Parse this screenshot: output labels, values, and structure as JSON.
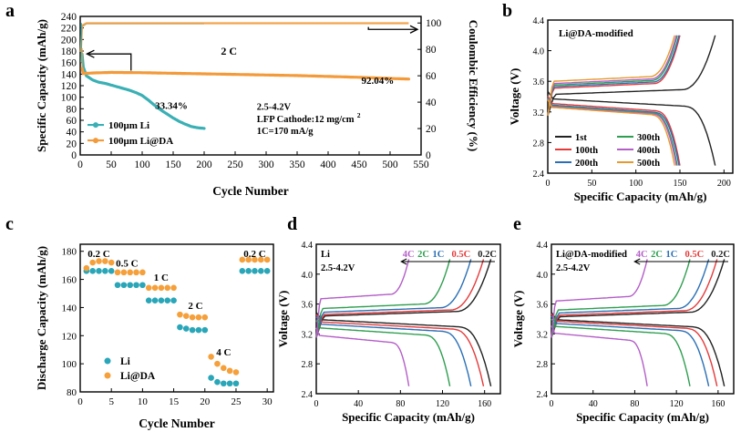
{
  "panels": {
    "a": "a",
    "b": "b",
    "c": "c",
    "d": "d",
    "e": "e"
  },
  "chart_data": [
    {
      "id": "a",
      "type": "scatter",
      "xlabel": "Cycle Number",
      "ylabel": "Specific Capacity (mAh/g)",
      "y2label": "Coulombic Efficiency (%)",
      "xlim": [
        0,
        550
      ],
      "ylim": [
        0,
        240
      ],
      "y2lim": [
        0,
        105
      ],
      "xticks": [
        0,
        50,
        100,
        150,
        200,
        250,
        300,
        350,
        400,
        450,
        500,
        550
      ],
      "yticks": [
        0,
        20,
        40,
        60,
        80,
        100,
        120,
        140,
        160,
        180,
        200,
        220,
        240
      ],
      "y2ticks": [
        0,
        20,
        40,
        60,
        80,
        100
      ],
      "rate_label": "2 C",
      "annotations": {
        "li_retention": "33.34%",
        "lida_retention": "92.04%",
        "voltage": "2.5-4.2V",
        "cathode": "LFP Cathode:12 mg/cm",
        "cathode_sup": "2",
        "rate_def": "1C=170 mA/g"
      },
      "series": [
        {
          "name": "100μm Li",
          "color": "#3ab0b5",
          "capacity": [
            [
              3,
              175
            ],
            [
              5,
              152
            ],
            [
              10,
              137
            ],
            [
              20,
              130
            ],
            [
              30,
              126
            ],
            [
              40,
              124
            ],
            [
              50,
              121
            ],
            [
              60,
              118
            ],
            [
              70,
              115
            ],
            [
              80,
              112
            ],
            [
              90,
              108
            ],
            [
              100,
              103
            ],
            [
              110,
              95
            ],
            [
              120,
              86
            ],
            [
              130,
              78
            ],
            [
              140,
              71
            ],
            [
              150,
              64
            ],
            [
              160,
              58
            ],
            [
              170,
              53
            ],
            [
              180,
              49
            ],
            [
              190,
              47
            ],
            [
              200,
              46
            ]
          ],
          "efficiency": [
            [
              1,
              70
            ],
            [
              3,
              97
            ],
            [
              10,
              99.5
            ],
            [
              200,
              99.5
            ]
          ]
        },
        {
          "name": "100μm Li@DA",
          "color": "#f39a3a",
          "capacity": [
            [
              3,
              150
            ],
            [
              5,
              141
            ],
            [
              20,
              142
            ],
            [
              50,
              143
            ],
            [
              100,
              142.5
            ],
            [
              150,
              141.5
            ],
            [
              200,
              140.5
            ],
            [
              250,
              139.5
            ],
            [
              300,
              138.5
            ],
            [
              350,
              137.5
            ],
            [
              400,
              136
            ],
            [
              450,
              134.5
            ],
            [
              500,
              132.5
            ],
            [
              530,
              131.5
            ]
          ],
          "efficiency": [
            [
              1,
              78
            ],
            [
              3,
              98
            ],
            [
              10,
              99.8
            ],
            [
              530,
              99.8
            ]
          ]
        }
      ]
    },
    {
      "id": "b",
      "type": "line",
      "title": "Li@DA-modified",
      "xlabel": "Specific Capacity (mAh/g)",
      "ylabel": "Voltage (V)",
      "xlim": [
        0,
        210
      ],
      "ylim": [
        2.4,
        4.4
      ],
      "xticks": [
        0,
        50,
        100,
        150,
        200
      ],
      "yticks": [
        2.4,
        2.8,
        3.2,
        3.6,
        4.0,
        4.4
      ],
      "series": [
        {
          "name": "1st",
          "color": "#222222",
          "cap": 190,
          "charge_plateau": 3.43,
          "discharge_plateau": 3.37
        },
        {
          "name": "100th",
          "color": "#e53a3a",
          "cap": 150,
          "charge_plateau": 3.51,
          "discharge_plateau": 3.31
        },
        {
          "name": "200th",
          "color": "#2a6fb5",
          "cap": 149,
          "charge_plateau": 3.53,
          "discharge_plateau": 3.29
        },
        {
          "name": "300th",
          "color": "#2e9e4f",
          "cap": 147,
          "charge_plateau": 3.55,
          "discharge_plateau": 3.28
        },
        {
          "name": "400th",
          "color": "#b45ec8",
          "cap": 146,
          "charge_plateau": 3.57,
          "discharge_plateau": 3.27
        },
        {
          "name": "500th",
          "color": "#e49a2e",
          "cap": 144,
          "charge_plateau": 3.6,
          "discharge_plateau": 3.26
        }
      ]
    },
    {
      "id": "c",
      "type": "scatter",
      "xlabel": "Cycle Number",
      "ylabel": "Discharge Capacity (mAh/g)",
      "xlim": [
        0,
        31
      ],
      "ylim": [
        80,
        185
      ],
      "xticks": [
        0,
        5,
        10,
        15,
        20,
        25,
        30
      ],
      "yticks": [
        80,
        100,
        120,
        140,
        160,
        180
      ],
      "rate_labels": [
        {
          "text": "0.2 C",
          "x": 3,
          "y": 176
        },
        {
          "text": "0.5 C",
          "x": 7.5,
          "y": 169
        },
        {
          "text": "1 C",
          "x": 13,
          "y": 159
        },
        {
          "text": "2 C",
          "x": 18.5,
          "y": 139
        },
        {
          "text": "4 C",
          "x": 23,
          "y": 106
        },
        {
          "text": "0.2 C",
          "x": 28,
          "y": 176
        }
      ],
      "series": [
        {
          "name": "Li",
          "color": "#29a6b8",
          "x": [
            1,
            2,
            3,
            4,
            5,
            6,
            7,
            8,
            9,
            10,
            11,
            12,
            13,
            14,
            15,
            16,
            17,
            18,
            19,
            20,
            21,
            22,
            23,
            24,
            25,
            26,
            27,
            28,
            29,
            30
          ],
          "values": [
            166,
            166,
            166,
            166,
            166,
            156,
            156,
            156,
            156,
            156,
            145,
            145,
            145,
            145,
            145,
            126,
            125,
            124,
            124,
            124,
            90,
            87,
            86,
            86,
            86,
            166,
            166,
            166,
            166,
            166
          ]
        },
        {
          "name": "Li@DA",
          "color": "#f5a03a",
          "x": [
            1,
            2,
            3,
            4,
            5,
            6,
            7,
            8,
            9,
            10,
            11,
            12,
            13,
            14,
            15,
            16,
            17,
            18,
            19,
            20,
            21,
            22,
            23,
            24,
            25,
            26,
            27,
            28,
            29,
            30
          ],
          "values": [
            168,
            172,
            173,
            173,
            172,
            165,
            165,
            165,
            165,
            165,
            154,
            154,
            154,
            154,
            154,
            135,
            134,
            133,
            133,
            133,
            105,
            100,
            97,
            95,
            94,
            174,
            174,
            174,
            174,
            174
          ]
        }
      ]
    },
    {
      "id": "d",
      "type": "line",
      "title": "Li",
      "subtitle": "2.5-4.2V",
      "xlabel": "Specific Capacity (mAh/g)",
      "ylabel": "Voltage (V)",
      "xlim": [
        0,
        175
      ],
      "ylim": [
        2.4,
        4.4
      ],
      "xticks": [
        0,
        40,
        80,
        120,
        160
      ],
      "yticks": [
        2.4,
        2.8,
        3.2,
        3.6,
        4.0,
        4.4
      ],
      "series": [
        {
          "name": "0.2C",
          "color": "#222222",
          "cap": 166,
          "charge_plateau": 3.44,
          "discharge_plateau": 3.39
        },
        {
          "name": "0.5C",
          "color": "#e53a3a",
          "cap": 159,
          "charge_plateau": 3.46,
          "discharge_plateau": 3.36
        },
        {
          "name": "1C",
          "color": "#2a6fb5",
          "cap": 147,
          "charge_plateau": 3.49,
          "discharge_plateau": 3.33
        },
        {
          "name": "2C",
          "color": "#2e9e4f",
          "cap": 127,
          "charge_plateau": 3.54,
          "discharge_plateau": 3.28
        },
        {
          "name": "4C",
          "color": "#b45ec8",
          "cap": 88,
          "charge_plateau": 3.67,
          "discharge_plateau": 3.18
        }
      ]
    },
    {
      "id": "e",
      "type": "line",
      "title": "Li@DA-modified",
      "subtitle": "2.5-4.2V",
      "xlabel": "Specific Capacity (mAh/g)",
      "ylabel": "Voltage (V)",
      "xlim": [
        0,
        175
      ],
      "ylim": [
        2.4,
        4.4
      ],
      "xticks": [
        0,
        40,
        80,
        120,
        160
      ],
      "yticks": [
        2.4,
        2.8,
        3.2,
        3.6,
        4.0,
        4.4
      ],
      "series": [
        {
          "name": "0.2C",
          "color": "#222222",
          "cap": 166,
          "charge_plateau": 3.43,
          "discharge_plateau": 3.39
        },
        {
          "name": "0.5C",
          "color": "#e53a3a",
          "cap": 159,
          "charge_plateau": 3.45,
          "discharge_plateau": 3.37
        },
        {
          "name": "1C",
          "color": "#2a6fb5",
          "cap": 151,
          "charge_plateau": 3.48,
          "discharge_plateau": 3.34
        },
        {
          "name": "2C",
          "color": "#2e9e4f",
          "cap": 133,
          "charge_plateau": 3.52,
          "discharge_plateau": 3.3
        },
        {
          "name": "4C",
          "color": "#b45ec8",
          "cap": 92,
          "charge_plateau": 3.64,
          "discharge_plateau": 3.21
        }
      ]
    }
  ]
}
